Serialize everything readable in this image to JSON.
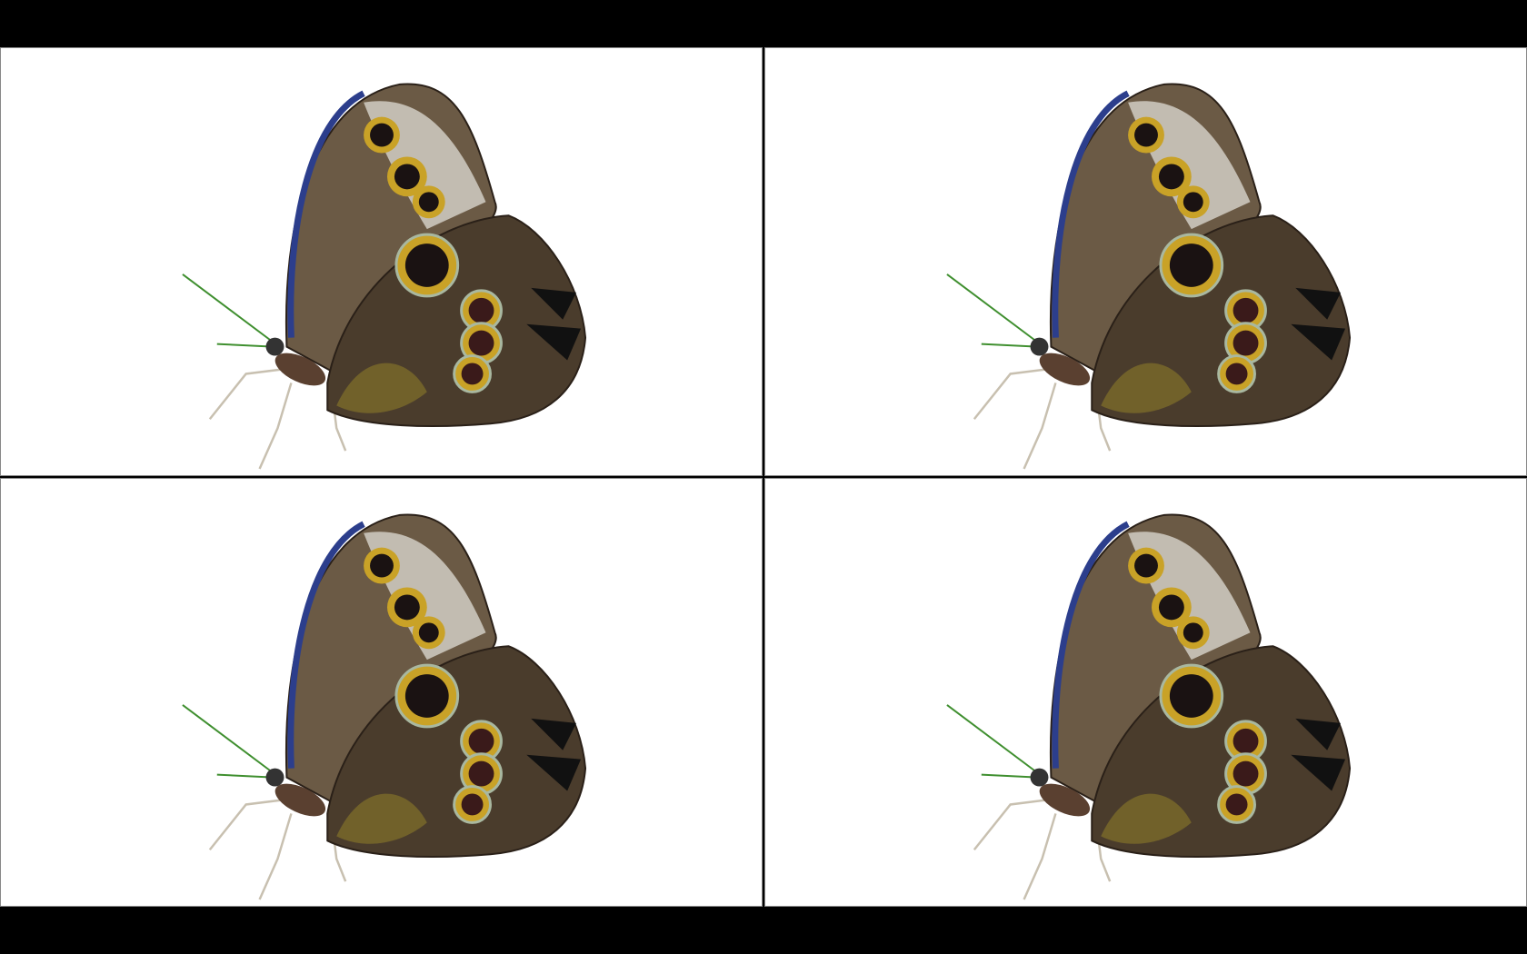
{
  "viewer": {
    "tiles": [
      {
        "subject": "butterfly-photo"
      },
      {
        "subject": "butterfly-photo"
      },
      {
        "subject": "butterfly-photo"
      },
      {
        "subject": "butterfly-photo"
      }
    ]
  },
  "colors": {
    "background": "#000000",
    "tile": "#ffffff",
    "wing_dark": "#3a2f24",
    "wing_mid": "#6b5a45",
    "wing_light": "#d8d4cc",
    "eye_ring": "#c9a227",
    "eye_center": "#1a1212",
    "edge_blue": "#2c3e8c",
    "antenna": "#3f8f2f"
  }
}
